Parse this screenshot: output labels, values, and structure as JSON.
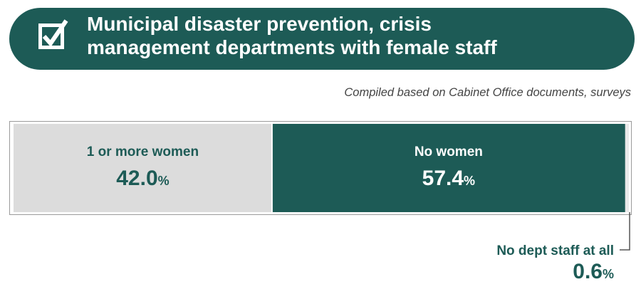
{
  "title_lines": [
    "Municipal disaster prevention, crisis",
    "management departments with female staff"
  ],
  "source": "Compiled based on Cabinet Office documents, surveys",
  "colors": {
    "banner": "#1d5b56",
    "one_or_more": "#dcdcdc",
    "no_women": "#1d5b56",
    "no_staff": "#e9e9e9",
    "label_dark": "#1d5b56",
    "label_light": "#ffffff"
  },
  "icons": {
    "title": "checkbox-check-icon"
  },
  "chart_data": {
    "type": "bar",
    "orientation": "horizontal-stacked-100",
    "unit": "%",
    "categories": [
      "1 or more women",
      "No women",
      "No dept staff at all"
    ],
    "values": [
      42.0,
      57.4,
      0.6
    ],
    "value_labels": [
      "42.0",
      "57.4",
      "0.6"
    ],
    "title": "Municipal disaster prevention, crisis management departments with female staff"
  }
}
